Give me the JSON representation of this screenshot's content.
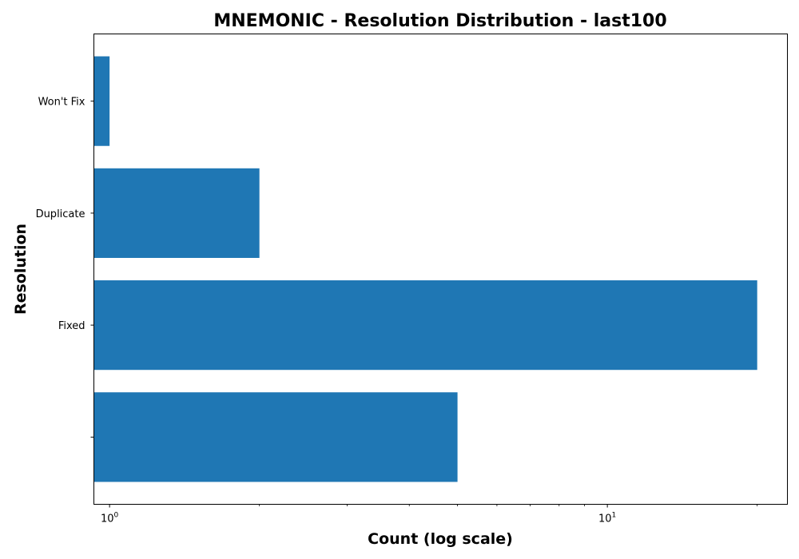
{
  "chart_data": {
    "type": "bar",
    "orientation": "horizontal",
    "title": "MNEMONIC - Resolution Distribution - last100",
    "xlabel": "Count (log scale)",
    "ylabel": "Resolution",
    "x_scale": "log",
    "xlim": [
      0.93,
      23
    ],
    "x_ticks": [
      {
        "value": 1,
        "base": "10",
        "exponent": "0"
      },
      {
        "value": 10,
        "base": "10",
        "exponent": "1"
      }
    ],
    "categories": [
      "",
      "Fixed",
      "Duplicate",
      "Won't Fix"
    ],
    "values": [
      5,
      20,
      2,
      1
    ],
    "bar_color": "#1f77b4",
    "grid": false,
    "legend": "none"
  }
}
